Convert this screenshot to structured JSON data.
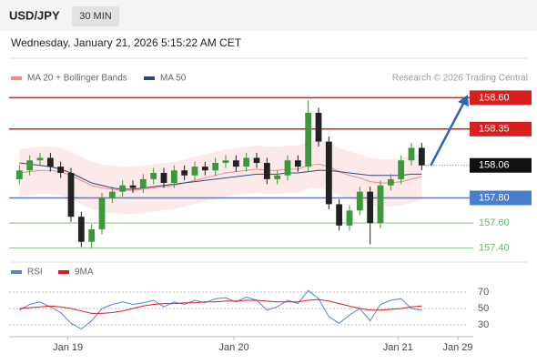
{
  "chart_data": {
    "type": "candlestick",
    "symbol": "USD/JPY",
    "timeframe": "30 MIN",
    "timestamp": "Wednesday, January 21, 2026 5:15:22 AM CET",
    "credit": "Research © 2026 Trading Central",
    "up_color": "#3a9a3a",
    "down_color": "#222222",
    "open": [
      157.95,
      158.02,
      158.1,
      158.12,
      158.05,
      158.0,
      157.65,
      157.45,
      157.55,
      157.8,
      157.85,
      157.9,
      157.88,
      157.95,
      158.0,
      157.92,
      158.02,
      157.98,
      158.05,
      158.02,
      158.08,
      158.1,
      158.05,
      158.12,
      158.08,
      157.95,
      157.98,
      158.1,
      158.05,
      158.48,
      158.25,
      157.75,
      157.58,
      157.7,
      157.85,
      157.6,
      157.9,
      157.95,
      158.1,
      158.2
    ],
    "high": [
      158.06,
      158.14,
      158.16,
      158.16,
      158.09,
      158.04,
      157.69,
      157.59,
      157.84,
      157.89,
      157.94,
      157.94,
      157.99,
      158.04,
      158.04,
      158.06,
      158.06,
      158.09,
      158.09,
      158.12,
      158.14,
      158.14,
      158.16,
      158.16,
      158.12,
      158.02,
      158.14,
      158.14,
      158.58,
      158.52,
      158.29,
      157.79,
      157.74,
      157.89,
      157.89,
      157.94,
      157.99,
      158.14,
      158.24,
      158.24
    ],
    "low": [
      157.91,
      157.98,
      158.06,
      158.01,
      157.96,
      157.61,
      157.41,
      157.4,
      157.51,
      157.76,
      157.81,
      157.84,
      157.84,
      157.91,
      157.88,
      157.88,
      157.94,
      157.94,
      157.98,
      157.98,
      158.04,
      158.01,
      158.01,
      158.04,
      157.91,
      157.91,
      157.94,
      158.01,
      158.01,
      158.21,
      157.71,
      157.54,
      157.54,
      157.66,
      157.43,
      157.56,
      157.86,
      157.91,
      158.06,
      158.02
    ],
    "close": [
      158.02,
      158.1,
      158.12,
      158.05,
      158.0,
      157.65,
      157.45,
      157.55,
      157.8,
      157.85,
      157.9,
      157.88,
      157.95,
      158.0,
      157.92,
      158.02,
      157.98,
      158.05,
      158.02,
      158.08,
      158.1,
      158.05,
      158.12,
      158.08,
      157.95,
      157.98,
      158.1,
      158.05,
      158.48,
      158.25,
      157.75,
      157.58,
      157.7,
      157.85,
      157.6,
      157.9,
      157.95,
      158.1,
      158.2,
      158.06
    ],
    "series": [
      {
        "name": "MA 20 + Bollinger Bands",
        "color": "#f08a8a",
        "values": [
          158.0,
          158.01,
          158.02,
          158.02,
          158.01,
          157.98,
          157.94,
          157.9,
          157.88,
          157.87,
          157.86,
          157.86,
          157.87,
          157.88,
          157.89,
          157.9,
          157.92,
          157.94,
          157.96,
          157.98,
          158.0,
          158.01,
          158.02,
          158.03,
          158.02,
          158.02,
          158.03,
          158.03,
          158.06,
          158.07,
          158.05,
          158.01,
          157.98,
          157.96,
          157.93,
          157.92,
          157.92,
          157.93,
          157.95,
          157.97
        ]
      },
      {
        "name": "MA 50",
        "color": "#2c4a7c",
        "values": [
          158.08,
          158.07,
          158.06,
          158.05,
          158.03,
          158.0,
          157.96,
          157.92,
          157.9,
          157.88,
          157.87,
          157.87,
          157.88,
          157.89,
          157.9,
          157.91,
          157.92,
          157.93,
          157.94,
          157.95,
          157.96,
          157.97,
          157.98,
          157.99,
          157.99,
          157.99,
          158.0,
          158.0,
          158.01,
          158.02,
          158.02,
          158.01,
          158.0,
          157.99,
          157.98,
          157.98,
          157.98,
          157.98,
          157.99,
          157.99
        ]
      }
    ],
    "levels": [
      {
        "value": 158.6,
        "label": "158.60",
        "color": "#d81e1e",
        "style": "box"
      },
      {
        "value": 158.35,
        "label": "158.35",
        "color": "#d81e1e",
        "style": "box"
      },
      {
        "value": 158.06,
        "label": "158.06",
        "color": "#111111",
        "style": "dotted"
      },
      {
        "value": 157.8,
        "label": "157.80",
        "color": "#4a7fd0",
        "style": "box"
      },
      {
        "value": 157.6,
        "label": "157.60",
        "color": "#6fb86f",
        "style": "text"
      },
      {
        "value": 157.4,
        "label": "157.40",
        "color": "#6fb86f",
        "style": "text"
      }
    ],
    "ylim": [
      157.31,
      158.69
    ],
    "xlim": [
      -1,
      44
    ],
    "xticks": [
      {
        "value": 4.7,
        "label": "Jan 19"
      },
      {
        "value": 20.8,
        "label": "Jan 20"
      },
      {
        "value": 36.7,
        "label": "Jan 21"
      },
      {
        "value": 42.5,
        "label": "Jan 29"
      }
    ],
    "rsi": {
      "series": [
        {
          "name": "RSI",
          "color": "#5b7fd6",
          "values": [
            48,
            55,
            58,
            52,
            45,
            32,
            25,
            35,
            50,
            55,
            58,
            55,
            57,
            60,
            52,
            58,
            55,
            60,
            57,
            62,
            63,
            58,
            64,
            60,
            48,
            52,
            60,
            56,
            72,
            62,
            40,
            32,
            42,
            50,
            35,
            55,
            60,
            62,
            50,
            48
          ]
        },
        {
          "name": "9MA",
          "color": "#d81e1e",
          "values": [
            50,
            51,
            52,
            53,
            52,
            50,
            47,
            44,
            44,
            45,
            47,
            50,
            53,
            55,
            56,
            56,
            57,
            57,
            58,
            58,
            59,
            59,
            60,
            60,
            59,
            58,
            58,
            58,
            60,
            61,
            59,
            56,
            53,
            50,
            48,
            48,
            49,
            50,
            52,
            53
          ]
        }
      ],
      "ylim": [
        20,
        80
      ],
      "yticks": [
        70,
        50,
        30
      ]
    }
  }
}
